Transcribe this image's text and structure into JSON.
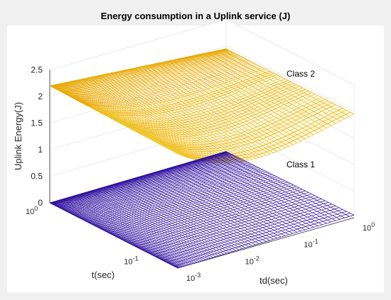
{
  "chart_data": {
    "type": "surface",
    "title": "Energy consumption in a Uplink service (J)",
    "xlabel": "td(sec)",
    "ylabel": "t(sec)",
    "zlabel": "Uplink Energy(J)",
    "x_scale": "log",
    "y_scale": "log",
    "xlim": [
      0.001,
      1
    ],
    "ylim": [
      0.05,
      1
    ],
    "zlim": [
      0,
      2.5
    ],
    "x_ticks": [
      {
        "base": "10",
        "exp": "-3"
      },
      {
        "base": "10",
        "exp": "-2"
      },
      {
        "base": "10",
        "exp": "-1"
      },
      {
        "base": "10",
        "exp": "0"
      }
    ],
    "y_ticks": [
      {
        "base": "10",
        "exp": "-1"
      },
      {
        "base": "10",
        "exp": "0"
      }
    ],
    "z_ticks": [
      "0",
      "0.5",
      "1",
      "1.5",
      "2",
      "2.5"
    ],
    "colors": {
      "background": "#f0f0f0",
      "axes": "#ffffff",
      "class1": "#2e0f9e",
      "class2_light": "#f7df4a",
      "class2_dark": "#e8a800"
    },
    "series": [
      {
        "name": "Class 1",
        "approx_energy": 0.02,
        "corners": {
          "td_min_t_max": 0.0,
          "td_min_t_min": 0.0,
          "td_max_t_max": 0.02,
          "td_max_t_min": 0.05
        }
      },
      {
        "name": "Class 2",
        "corners": {
          "td_min_t_max": 2.2,
          "td_min_t_min": 2.15,
          "td_max_t_max": 1.95,
          "td_max_t_min": 1.95
        },
        "min_energy": 1.62
      }
    ],
    "grid": true
  }
}
